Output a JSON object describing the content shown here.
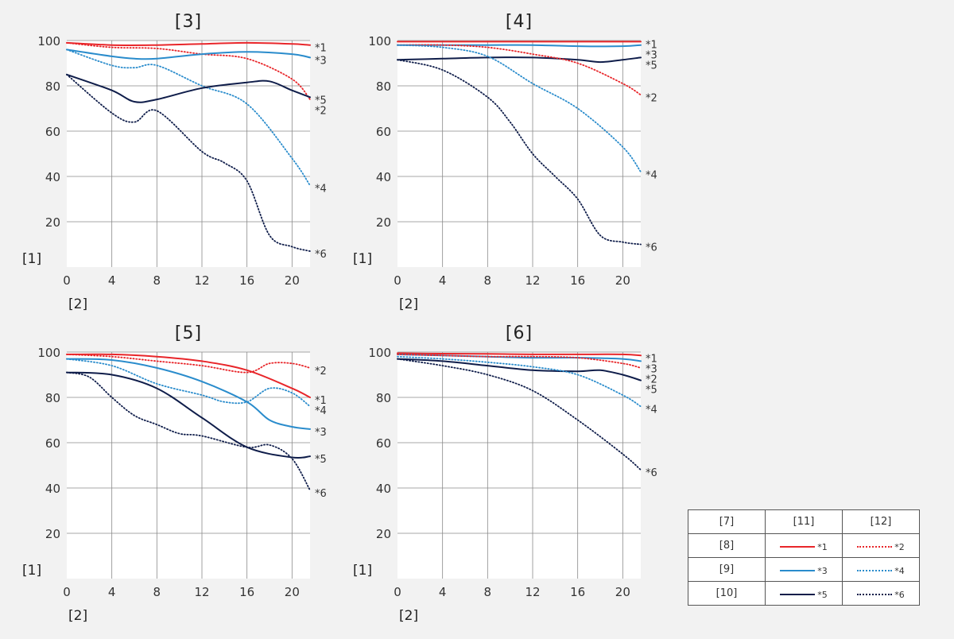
{
  "chart_data": [
    {
      "type": "line",
      "title": "[3]",
      "ylabel": "[1]",
      "xlabel": "[2]",
      "xlim": [
        0,
        21.6
      ],
      "ylim": [
        0,
        100
      ],
      "xticks": [
        0,
        4,
        8,
        12,
        16,
        20
      ],
      "yticks": [
        20,
        40,
        60,
        80,
        100
      ],
      "series": [
        {
          "name": "*1",
          "color": "#e8262a",
          "dash": "solid",
          "width": 2.0,
          "x": [
            0,
            4,
            8,
            12,
            16,
            20,
            21.6
          ],
          "y": [
            99,
            98,
            98,
            98.5,
            99,
            98.5,
            98
          ]
        },
        {
          "name": "*2",
          "color": "#e8262a",
          "dash": "dotted",
          "width": 1.8,
          "x": [
            0,
            4,
            8,
            12,
            16,
            20,
            21.6
          ],
          "y": [
            99,
            97,
            96.5,
            94,
            92,
            83,
            74
          ]
        },
        {
          "name": "*3",
          "color": "#2a8ccc",
          "dash": "solid",
          "width": 2.0,
          "x": [
            0,
            4,
            6,
            8,
            12,
            16,
            20,
            21.6
          ],
          "y": [
            96,
            93,
            92,
            92,
            94,
            95,
            94,
            92.5
          ]
        },
        {
          "name": "*4",
          "color": "#2a8ccc",
          "dash": "dotted",
          "width": 1.8,
          "x": [
            0,
            4,
            6,
            8,
            12,
            16,
            20,
            21.6
          ],
          "y": [
            96,
            89,
            88,
            89,
            80,
            72,
            48,
            36
          ]
        },
        {
          "name": "*5",
          "color": "#0f1d4a",
          "dash": "solid",
          "width": 2.0,
          "x": [
            0,
            4,
            6,
            8,
            12,
            16,
            18,
            20,
            21.6
          ],
          "y": [
            85,
            78,
            73,
            74,
            79,
            81.5,
            82,
            78,
            75
          ]
        },
        {
          "name": "*6",
          "color": "#0f1d4a",
          "dash": "dotted",
          "width": 1.8,
          "x": [
            0,
            4,
            6,
            8,
            12,
            14,
            16,
            18,
            20,
            21.6
          ],
          "y": [
            85,
            68,
            64,
            69,
            51,
            46,
            38,
            14,
            9,
            7
          ]
        }
      ]
    },
    {
      "type": "line",
      "title": "[4]",
      "ylabel": "[1]",
      "xlabel": "[2]",
      "xlim": [
        0,
        21.6
      ],
      "ylim": [
        0,
        100
      ],
      "xticks": [
        0,
        4,
        8,
        12,
        16,
        20
      ],
      "yticks": [
        20,
        40,
        60,
        80,
        100
      ],
      "series": [
        {
          "name": "*1",
          "color": "#e8262a",
          "dash": "solid",
          "width": 2.0,
          "x": [
            0,
            4,
            8,
            12,
            16,
            20,
            21.6
          ],
          "y": [
            99.5,
            99.5,
            99.5,
            99.5,
            99.5,
            99.5,
            99.5
          ]
        },
        {
          "name": "*3",
          "color": "#2a8ccc",
          "dash": "solid",
          "width": 2.0,
          "x": [
            0,
            4,
            8,
            12,
            16,
            20,
            21.6
          ],
          "y": [
            98,
            98,
            98,
            98,
            97.5,
            97.5,
            98
          ]
        },
        {
          "name": "*5",
          "color": "#0f1d4a",
          "dash": "solid",
          "width": 2.0,
          "x": [
            0,
            4,
            8,
            12,
            16,
            18,
            20,
            21.6
          ],
          "y": [
            91.5,
            92,
            92.5,
            92.5,
            91.5,
            90.5,
            91.5,
            92.5
          ]
        },
        {
          "name": "*2",
          "color": "#e8262a",
          "dash": "dotted",
          "width": 1.8,
          "x": [
            0,
            4,
            8,
            12,
            16,
            20,
            21.6
          ],
          "y": [
            98,
            98,
            97,
            94,
            90,
            81,
            76
          ]
        },
        {
          "name": "*4",
          "color": "#2a8ccc",
          "dash": "dotted",
          "width": 1.8,
          "x": [
            0,
            4,
            8,
            12,
            16,
            20,
            21.6
          ],
          "y": [
            98,
            97,
            93,
            81,
            70,
            53,
            42
          ]
        },
        {
          "name": "*6",
          "color": "#0f1d4a",
          "dash": "dotted",
          "width": 1.8,
          "x": [
            0,
            4,
            8,
            10,
            12,
            14,
            16,
            18,
            20,
            21.6
          ],
          "y": [
            91.5,
            87,
            75,
            64,
            50,
            40,
            30,
            14,
            11,
            10
          ]
        }
      ]
    },
    {
      "type": "line",
      "title": "[5]",
      "ylabel": "[1]",
      "xlabel": "[2]",
      "xlim": [
        0,
        21.6
      ],
      "ylim": [
        0,
        100
      ],
      "xticks": [
        0,
        4,
        8,
        12,
        16,
        20
      ],
      "yticks": [
        20,
        40,
        60,
        80,
        100
      ],
      "series": [
        {
          "name": "*2",
          "color": "#e8262a",
          "dash": "dotted",
          "width": 1.8,
          "x": [
            0,
            4,
            8,
            12,
            16,
            18,
            20,
            21.6
          ],
          "y": [
            99,
            98,
            96,
            94,
            91,
            95,
            95,
            93
          ]
        },
        {
          "name": "*1",
          "color": "#e8262a",
          "dash": "solid",
          "width": 2.0,
          "x": [
            0,
            4,
            8,
            12,
            16,
            20,
            21.6
          ],
          "y": [
            99,
            99,
            98,
            96,
            92,
            84,
            80
          ]
        },
        {
          "name": "*4",
          "color": "#2a8ccc",
          "dash": "dotted",
          "width": 1.8,
          "x": [
            0,
            4,
            8,
            12,
            14,
            16,
            18,
            20,
            21.6
          ],
          "y": [
            97,
            94,
            86,
            81,
            78,
            78,
            84,
            82,
            76
          ]
        },
        {
          "name": "*3",
          "color": "#2a8ccc",
          "dash": "solid",
          "width": 2.0,
          "x": [
            0,
            4,
            8,
            12,
            16,
            18,
            20,
            21.6
          ],
          "y": [
            97,
            96.5,
            93,
            87,
            78,
            70,
            67,
            66
          ]
        },
        {
          "name": "*5",
          "color": "#0f1d4a",
          "dash": "solid",
          "width": 2.0,
          "x": [
            0,
            4,
            8,
            12,
            16,
            20,
            21.6
          ],
          "y": [
            91,
            90,
            84,
            71,
            58,
            53.5,
            54
          ]
        },
        {
          "name": "*6",
          "color": "#0f1d4a",
          "dash": "dotted",
          "width": 1.8,
          "x": [
            0,
            2,
            4,
            6,
            8,
            10,
            12,
            16,
            18,
            20,
            21.6
          ],
          "y": [
            91,
            89,
            80,
            72,
            68,
            64,
            63,
            58,
            59,
            53,
            39
          ]
        }
      ]
    },
    {
      "type": "line",
      "title": "[6]",
      "ylabel": "[1]",
      "xlabel": "[2]",
      "xlim": [
        0,
        21.6
      ],
      "ylim": [
        0,
        100
      ],
      "xticks": [
        0,
        4,
        8,
        12,
        16,
        20
      ],
      "yticks": [
        20,
        40,
        60,
        80,
        100
      ],
      "series": [
        {
          "name": "*1",
          "color": "#e8262a",
          "dash": "solid",
          "width": 2.0,
          "x": [
            0,
            4,
            8,
            12,
            16,
            20,
            21.6
          ],
          "y": [
            99.5,
            99.3,
            99.2,
            99,
            99,
            99,
            98.5
          ]
        },
        {
          "name": "*3",
          "color": "#2a8ccc",
          "dash": "solid",
          "width": 2.0,
          "x": [
            0,
            4,
            8,
            12,
            16,
            20,
            21.6
          ],
          "y": [
            99,
            98.5,
            98,
            97.5,
            97.5,
            97,
            96
          ]
        },
        {
          "name": "*2",
          "color": "#e8262a",
          "dash": "dotted",
          "width": 1.8,
          "x": [
            0,
            4,
            8,
            12,
            16,
            20,
            21.6
          ],
          "y": [
            99,
            98.5,
            98,
            98,
            97.5,
            95,
            93
          ]
        },
        {
          "name": "*5",
          "color": "#0f1d4a",
          "dash": "solid",
          "width": 2.0,
          "x": [
            0,
            4,
            8,
            12,
            16,
            18,
            20,
            21.6
          ],
          "y": [
            97,
            96,
            94,
            92,
            91.5,
            92,
            90,
            87.5
          ]
        },
        {
          "name": "*4",
          "color": "#2a8ccc",
          "dash": "dotted",
          "width": 1.8,
          "x": [
            0,
            4,
            8,
            12,
            16,
            20,
            21.6
          ],
          "y": [
            98,
            97,
            95.5,
            93.5,
            90,
            81,
            76
          ]
        },
        {
          "name": "*6",
          "color": "#0f1d4a",
          "dash": "dotted",
          "width": 1.8,
          "x": [
            0,
            4,
            8,
            12,
            16,
            20,
            21.6
          ],
          "y": [
            97,
            94,
            90,
            83,
            70,
            55,
            48
          ]
        }
      ]
    }
  ],
  "legend": {
    "headers": [
      "[7]",
      "[11]",
      "[12]"
    ],
    "rows": [
      {
        "label": "[8]",
        "solid": "*1",
        "dotted": "*2",
        "color": "#e8262a"
      },
      {
        "label": "[9]",
        "solid": "*3",
        "dotted": "*4",
        "color": "#2a8ccc"
      },
      {
        "label": "[10]",
        "solid": "*5",
        "dotted": "*6",
        "color": "#0f1d4a"
      }
    ]
  }
}
